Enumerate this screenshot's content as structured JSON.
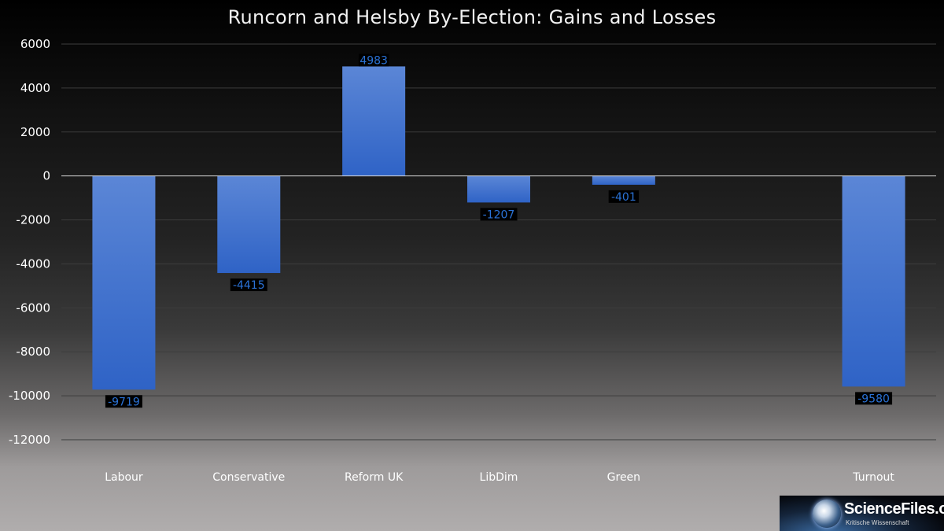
{
  "chart_data": {
    "type": "bar",
    "title": "Runcorn and Helsby By-Election: Gains and Losses",
    "categories": [
      "Labour",
      "Conservative",
      "Reform UK",
      "LibDim",
      "Green",
      "",
      "Turnout"
    ],
    "values": [
      -9719,
      -4415,
      4983,
      -1207,
      -401,
      null,
      -9580
    ],
    "data_labels": [
      "-9719",
      "-4415",
      "4983",
      "-1207",
      "-401",
      "",
      "-9580"
    ],
    "ylim": [
      -12000,
      6000
    ],
    "yticks": [
      6000,
      4000,
      2000,
      0,
      -2000,
      -4000,
      -6000,
      -8000,
      -10000,
      -12000
    ],
    "ytick_labels": [
      "6000",
      "4000",
      "2000",
      "0",
      "-2000",
      "-4000",
      "-6000",
      "-8000",
      "-10000",
      "-12000"
    ],
    "xlabel": "",
    "ylabel": "",
    "grid": true,
    "legend": "none",
    "bar_color_top": "#5b86d6",
    "bar_color_bottom": "#2f63c6",
    "label_color": "#2a72d6"
  },
  "watermark": {
    "name": "ScienceFiles.org",
    "tagline": "Kritische Wissenschaft"
  }
}
